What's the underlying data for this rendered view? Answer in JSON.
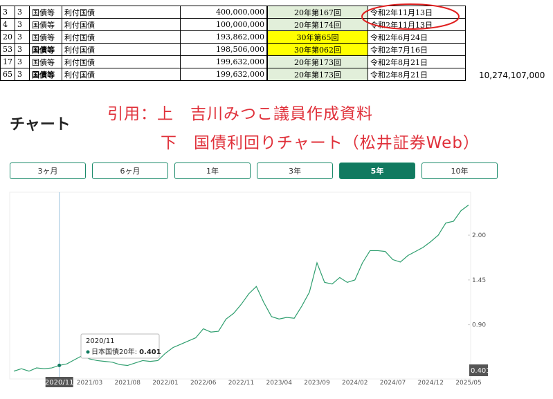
{
  "table": {
    "rows": [
      [
        "3",
        "3",
        "国債等",
        "利付国債",
        "400,000,000",
        "20年第167回",
        "令和2年11月13日"
      ],
      [
        "4",
        "3",
        "国債等",
        "利付国債",
        "100,000,000",
        "20年第174回",
        "令和2年11月13日"
      ],
      [
        "20",
        "3",
        "国債等",
        "利付国債",
        "193,862,000",
        "30年第65回",
        "令和2年6月24日"
      ],
      [
        "53",
        "3",
        "国債等",
        "利付国債",
        "198,506,000",
        "30年第062回",
        "令和2年7月16日"
      ],
      [
        "17",
        "3",
        "国債等",
        "利付国債",
        "199,632,000",
        "20年第173回",
        "令和2年8月21日"
      ],
      [
        "65",
        "3",
        "国債等",
        "利付国債",
        "199,632,000",
        "20年第173回",
        "令和2年8月21日"
      ]
    ],
    "side_total": "10,274,107,000"
  },
  "note": {
    "line1": "引用：上　吉川みつこ議員作成資料",
    "line2": "下　国債利回りチャート（松井証券Web）"
  },
  "heading": "チャート",
  "buttons": [
    "3ヶ月",
    "6ヶ月",
    "1年",
    "3年",
    "5年",
    "10年"
  ],
  "chart": {
    "type": "line",
    "color": "#2e9e6e",
    "categories": [
      "",
      "",
      "",
      "",
      "",
      "",
      "2020/11",
      "",
      "",
      "",
      "2021/03",
      "",
      "",
      "",
      "",
      "2021/08",
      "",
      "",
      "",
      "",
      "2022/01",
      "",
      "",
      "",
      "",
      "2022/06",
      "",
      "",
      "",
      "",
      "2022/11",
      "",
      "",
      "",
      "",
      "2023/04",
      "",
      "",
      "",
      "",
      "2023/09",
      "",
      "",
      "",
      "",
      "2024/02",
      "",
      "",
      "",
      "",
      "2024/07",
      "",
      "",
      "",
      "",
      "2024/12",
      "",
      "",
      "",
      "",
      "2025/05"
    ],
    "series": [
      {
        "name": "日本国債20年:",
        "values": [
          0.33,
          0.36,
          0.33,
          0.37,
          0.36,
          0.37,
          0.401,
          0.42,
          0.47,
          0.52,
          0.48,
          0.46,
          0.45,
          0.44,
          0.41,
          0.4,
          0.43,
          0.46,
          0.45,
          0.46,
          0.55,
          0.62,
          0.66,
          0.7,
          0.74,
          0.85,
          0.81,
          0.82,
          0.97,
          1.04,
          1.15,
          1.28,
          1.37,
          1.17,
          1.0,
          0.97,
          0.99,
          0.98,
          1.13,
          1.3,
          1.66,
          1.42,
          1.4,
          1.48,
          1.42,
          1.45,
          1.66,
          1.81,
          1.81,
          1.8,
          1.7,
          1.67,
          1.75,
          1.8,
          1.85,
          1.92,
          2.0,
          2.15,
          2.17,
          2.3,
          2.37
        ]
      }
    ],
    "ylim": [
      0.26,
      2.51
    ],
    "yticks": [
      {
        "value": 0.9,
        "label": "0.90"
      },
      1.45,
      {
        "value": 2,
        "label": "2.00"
      }
    ],
    "tooltip_index": 6
  }
}
